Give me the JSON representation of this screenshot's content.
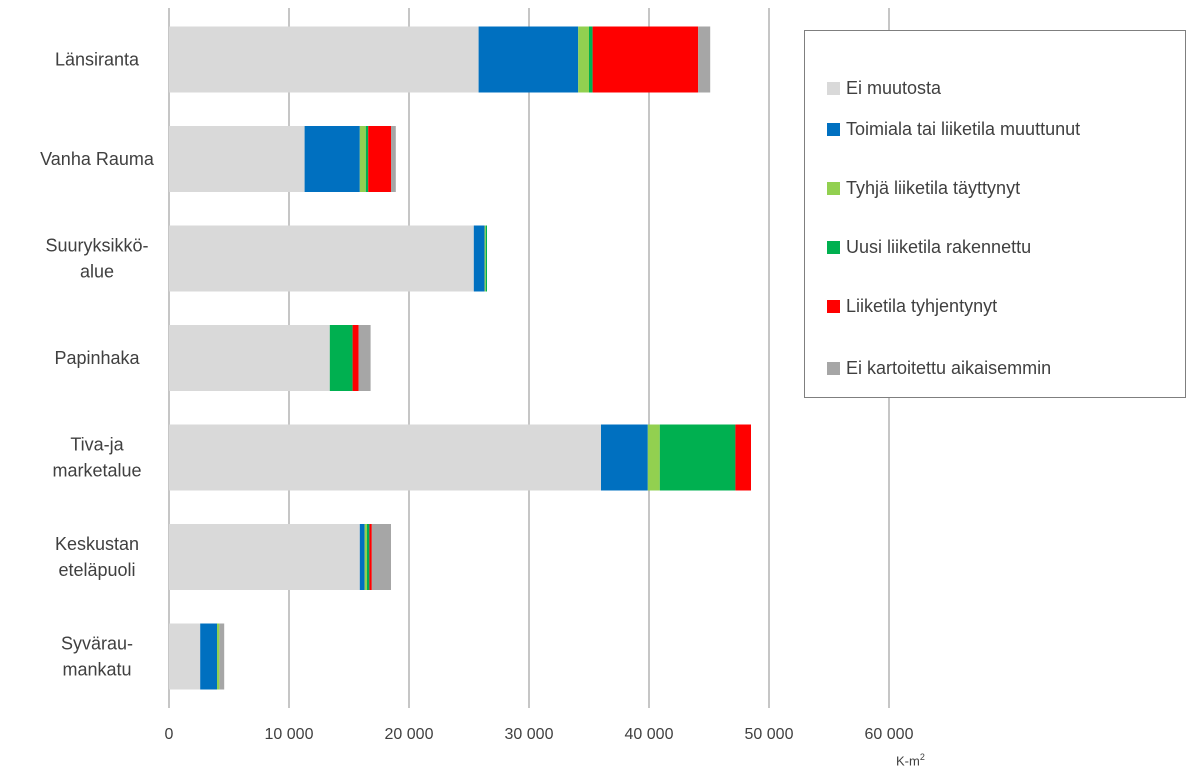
{
  "chart_data": {
    "type": "bar",
    "orientation": "horizontal",
    "stacked": true,
    "categories": [
      [
        "Länsiranta"
      ],
      [
        "Vanha Rauma"
      ],
      [
        "Suuryksikkö-",
        "alue"
      ],
      [
        "Papinhaka"
      ],
      [
        "Tiva-ja",
        "marketalue"
      ],
      [
        "Keskustan",
        "eteläpuoli"
      ],
      [
        "Syvärau-",
        "mankatu"
      ]
    ],
    "series": [
      {
        "name": "Ei muutosta",
        "color": "#d9d9d9",
        "values": [
          25800,
          11300,
          25400,
          13400,
          36000,
          15900,
          2600
        ]
      },
      {
        "name": "Toimiala tai liiketila muuttunut",
        "color": "#0070c0",
        "values": [
          8300,
          4600,
          900,
          0,
          3900,
          400,
          1400
        ]
      },
      {
        "name": "Tyhjä liiketila täyttynyt",
        "color": "#92d050",
        "values": [
          900,
          500,
          100,
          0,
          1000,
          200,
          200
        ]
      },
      {
        "name": "Uusi liiketila rakennettu",
        "color": "#00b050",
        "values": [
          300,
          200,
          100,
          1900,
          6300,
          200,
          0
        ]
      },
      {
        "name": "Liiketila tyhjentynyt",
        "color": "#ff0000",
        "values": [
          8800,
          1900,
          0,
          500,
          1300,
          200,
          0
        ]
      },
      {
        "name": "Ei kartoitettu aikaisemmin",
        "color": "#a6a6a6",
        "values": [
          1000,
          400,
          0,
          1000,
          0,
          1600,
          400
        ]
      }
    ],
    "x_ticks": [
      "0",
      "10 000",
      "20 000",
      "30 000",
      "40 000",
      "50 000",
      "60 000"
    ],
    "xlim": [
      0,
      60000
    ],
    "xlabel": "K-m",
    "xlabel_sup": "2",
    "grid": true,
    "legend_position": "top-right"
  }
}
